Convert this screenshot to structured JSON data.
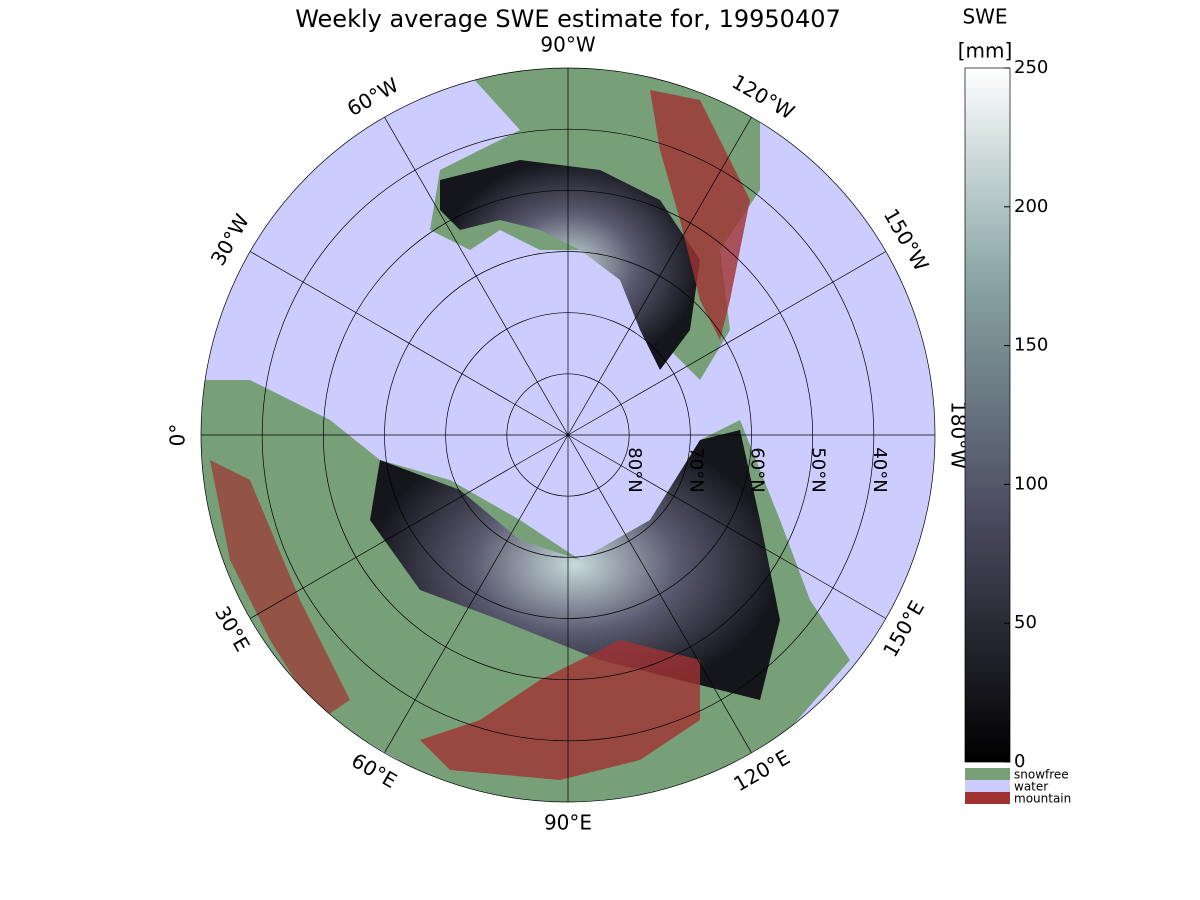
{
  "title": "Weekly average SWE estimate for, 19950407",
  "map": {
    "latlim": [
      30,
      90
    ],
    "parallels": [
      {
        "value": 80,
        "label": "80°N"
      },
      {
        "value": 70,
        "label": "70°N"
      },
      {
        "value": 60,
        "label": "60°N"
      },
      {
        "value": 50,
        "label": "50°N"
      },
      {
        "value": 40,
        "label": "40°N"
      }
    ],
    "meridians": [
      {
        "value": -90,
        "label": "90°W"
      },
      {
        "value": -60,
        "label": "60°W"
      },
      {
        "value": -30,
        "label": "30°W"
      },
      {
        "value": 0,
        "label": "0°"
      },
      {
        "value": 30,
        "label": "30°E"
      },
      {
        "value": 60,
        "label": "60°E"
      },
      {
        "value": 90,
        "label": "90°E"
      },
      {
        "value": 120,
        "label": "120°E"
      },
      {
        "value": 150,
        "label": "150°E"
      },
      {
        "value": 180,
        "label": "180°W"
      },
      {
        "value": -150,
        "label": "150°W"
      },
      {
        "value": -120,
        "label": "120°W"
      }
    ]
  },
  "colorbar": {
    "title": "SWE",
    "unit": "[mm]",
    "lim": [
      0,
      250
    ],
    "ticks": [
      0,
      50,
      100,
      150,
      200,
      250
    ]
  },
  "legend": [
    {
      "name": "snowfree",
      "color": "#78a078"
    },
    {
      "name": "water",
      "color": "#ccccff"
    },
    {
      "name": "mountain",
      "color": "#a03232"
    }
  ]
}
